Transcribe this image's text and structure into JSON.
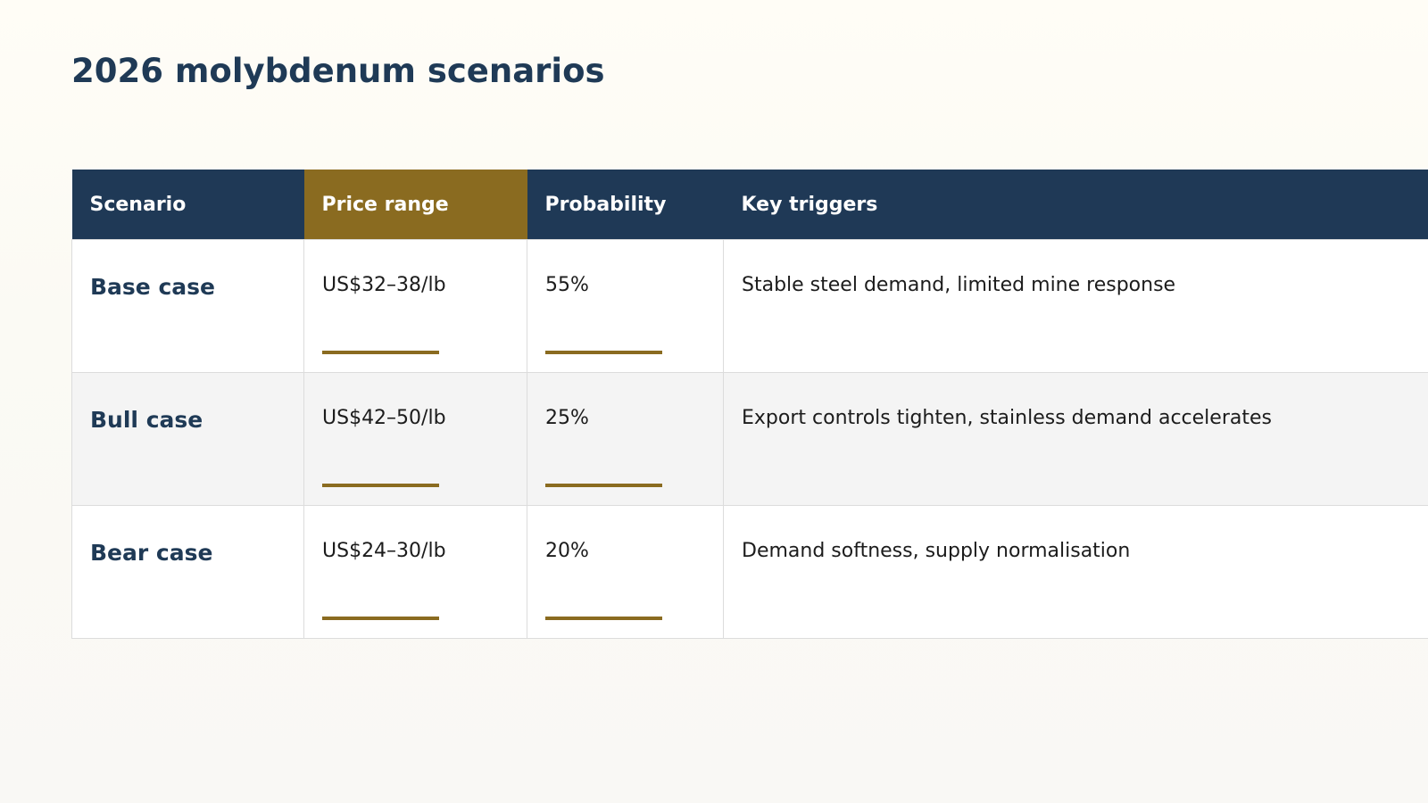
{
  "page": {
    "title": "2026 molybdenum scenarios"
  },
  "table": {
    "headers": {
      "scenario": "Scenario",
      "price_range": "Price range",
      "probability": "Probability",
      "key_triggers": "Key triggers"
    },
    "rows": [
      {
        "scenario": "Base case",
        "price_range": "US$32–38/lb",
        "probability": "55%",
        "key_triggers": "Stable steel demand, limited mine response"
      },
      {
        "scenario": "Bull case",
        "price_range": "US$42–50/lb",
        "probability": "25%",
        "key_triggers": "Export controls tighten, stainless demand accelerates"
      },
      {
        "scenario": "Bear case",
        "price_range": "US$24–30/lb",
        "probability": "20%",
        "key_triggers": "Demand softness, supply normalisation"
      }
    ]
  },
  "colors": {
    "navy": "#1f3956",
    "gold": "#8a6b20",
    "row_alt": "#f4f4f4"
  }
}
